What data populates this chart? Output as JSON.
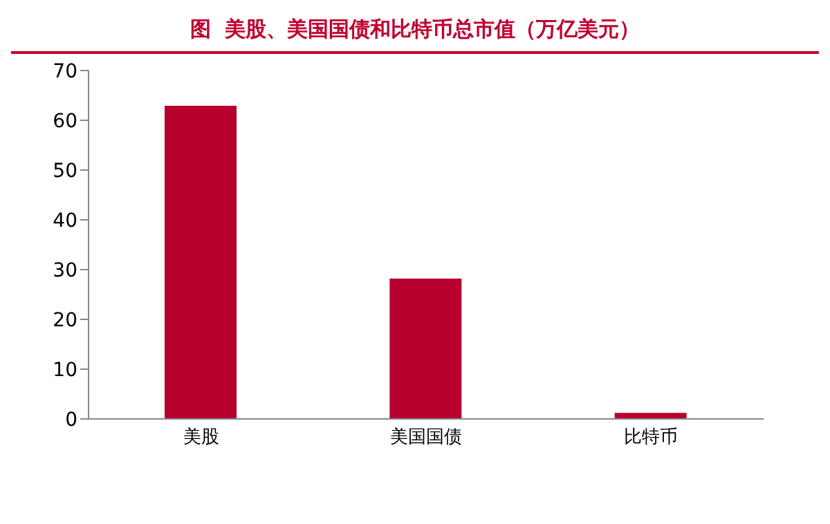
{
  "chart_data": {
    "type": "bar",
    "title": "图  美股、美国国债和比特币总市值（万亿美元）",
    "categories": [
      "美股",
      "美国国债",
      "比特币"
    ],
    "values": [
      62.9,
      28.2,
      1.2
    ],
    "color": "#b8002e",
    "ylim": [
      0,
      70
    ],
    "yticks": [
      0,
      10,
      20,
      30,
      40,
      50,
      60,
      70
    ],
    "grid": false
  }
}
